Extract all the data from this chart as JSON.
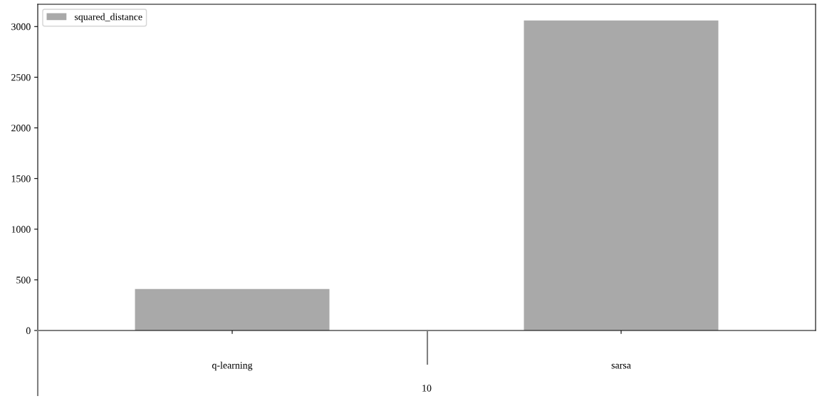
{
  "chart_data": {
    "type": "bar",
    "xlabel": "10",
    "categories": [
      "q-learning",
      "sarsa"
    ],
    "series": [
      {
        "name": "squared_distance",
        "color": "#a9a9a9",
        "values": [
          410,
          3060
        ]
      }
    ],
    "ylim": [
      0,
      3220
    ],
    "yticks": [
      0,
      500,
      1000,
      1500,
      2000,
      2500,
      3000
    ],
    "grid": false,
    "legend": "top left"
  }
}
